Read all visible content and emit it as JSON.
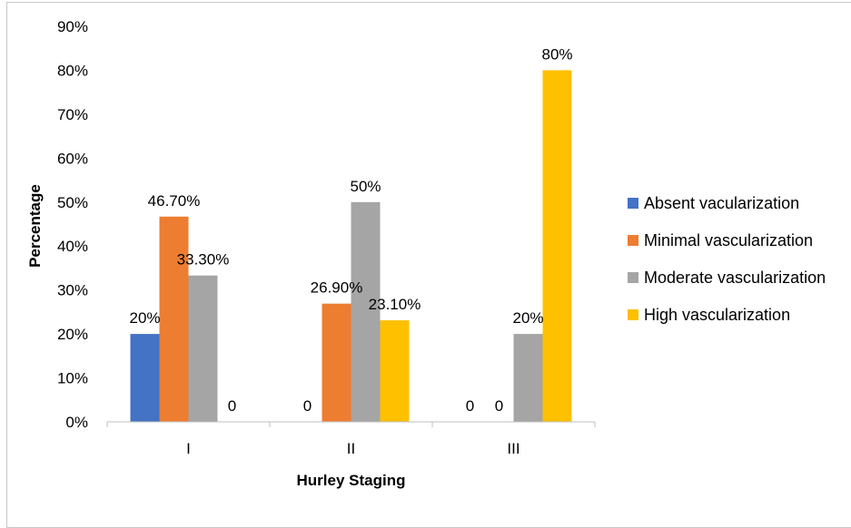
{
  "chart_data": {
    "type": "bar",
    "title": "",
    "xlabel": "Hurley Staging",
    "ylabel": "Percentage",
    "categories": [
      "I",
      "II",
      "III"
    ],
    "ylim": [
      0,
      90
    ],
    "y_ticks": [
      "0%",
      "10%",
      "20%",
      "30%",
      "40%",
      "50%",
      "60%",
      "70%",
      "80%",
      "90%"
    ],
    "grid": false,
    "legend_position": "right",
    "series": [
      {
        "name": "Absent vacularization",
        "color": "#4472C4",
        "values": [
          20,
          0,
          0
        ],
        "labels": [
          "20%",
          "0",
          "0"
        ]
      },
      {
        "name": "Minimal vascularization",
        "color": "#ED7D31",
        "values": [
          46.7,
          26.9,
          0
        ],
        "labels": [
          "46.70%",
          "26.90%",
          "0"
        ]
      },
      {
        "name": "Moderate vascularization",
        "color": "#A5A5A5",
        "values": [
          33.3,
          50,
          20
        ],
        "labels": [
          "33.30%",
          "50%",
          "20%"
        ]
      },
      {
        "name": "High vascularization",
        "color": "#FFC000",
        "values": [
          0,
          23.1,
          80
        ],
        "labels": [
          "0",
          "23.10%",
          "80%"
        ]
      }
    ]
  }
}
